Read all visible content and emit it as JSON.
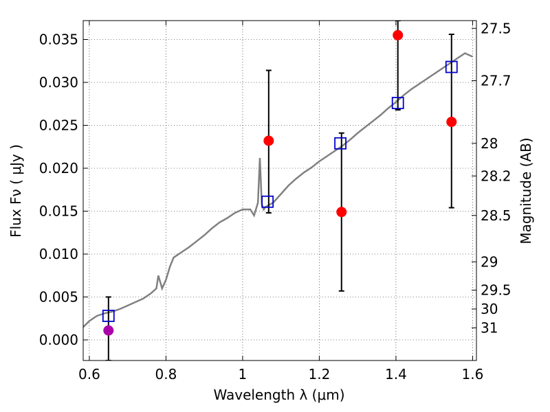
{
  "chart_data": {
    "type": "scatter",
    "xlabel": "Wavelength  λ (μm)",
    "ylabel": "Flux  Fν  ( μJy )",
    "ylabel_right": "Magnitude (AB)",
    "xlim": [
      0.584,
      1.61
    ],
    "ylim": [
      -0.0024,
      0.0372
    ],
    "x_ticks": [
      0.6,
      0.8,
      1.0,
      1.2,
      1.4,
      1.6
    ],
    "x_tick_labels": [
      "0.6",
      "0.8",
      "1",
      "1.2",
      "1.4",
      "1.6"
    ],
    "y_ticks": [
      0.0,
      0.005,
      0.01,
      0.015,
      0.02,
      0.025,
      0.03,
      0.035
    ],
    "y_tick_labels": [
      "0.000",
      "0.005",
      "0.010",
      "0.015",
      "0.020",
      "0.025",
      "0.030",
      "0.035"
    ],
    "right_ticks": [
      {
        "label": "27.5",
        "flux": 0.0363
      },
      {
        "label": "27.7",
        "flux": 0.0302
      },
      {
        "label": "28",
        "flux": 0.0229
      },
      {
        "label": "28.2",
        "flux": 0.0191
      },
      {
        "label": "28.5",
        "flux": 0.0145
      },
      {
        "label": "29",
        "flux": 0.0091
      },
      {
        "label": "29.5",
        "flux": 0.0058
      },
      {
        "label": "30",
        "flux": 0.0036
      },
      {
        "label": "31",
        "flux": 0.0014
      }
    ],
    "grid": true,
    "colors": {
      "spectrum": "#808080",
      "model": "#0000cc",
      "observed": "#ff0000",
      "upper": "#aa00aa",
      "error": "#000000"
    },
    "series": [
      {
        "kind": "line",
        "x": [
          0.584,
          0.6,
          0.62,
          0.64,
          0.66,
          0.68,
          0.7,
          0.72,
          0.74,
          0.76,
          0.775,
          0.78,
          0.79,
          0.8,
          0.81,
          0.82,
          0.84,
          0.86,
          0.88,
          0.9,
          0.92,
          0.94,
          0.96,
          0.98,
          1.0,
          1.02,
          1.03,
          1.04,
          1.045,
          1.05,
          1.055,
          1.06,
          1.08,
          1.1,
          1.12,
          1.14,
          1.16,
          1.18,
          1.2,
          1.22,
          1.24,
          1.26,
          1.28,
          1.3,
          1.32,
          1.34,
          1.36,
          1.38,
          1.4,
          1.42,
          1.44,
          1.46,
          1.48,
          1.5,
          1.52,
          1.54,
          1.56,
          1.58,
          1.6
        ],
        "y": [
          0.0015,
          0.0022,
          0.0028,
          0.0031,
          0.0033,
          0.0036,
          0.004,
          0.0044,
          0.0048,
          0.0054,
          0.006,
          0.0075,
          0.006,
          0.007,
          0.0085,
          0.0096,
          0.0102,
          0.0108,
          0.0115,
          0.0122,
          0.013,
          0.0137,
          0.0142,
          0.0148,
          0.0152,
          0.0152,
          0.0145,
          0.016,
          0.0212,
          0.0158,
          0.0152,
          0.0155,
          0.016,
          0.017,
          0.018,
          0.0188,
          0.0195,
          0.0201,
          0.0208,
          0.0214,
          0.022,
          0.0226,
          0.0233,
          0.0241,
          0.0248,
          0.0255,
          0.0262,
          0.027,
          0.0277,
          0.0285,
          0.0292,
          0.0298,
          0.0304,
          0.031,
          0.0316,
          0.0322,
          0.0328,
          0.0334,
          0.033
        ]
      },
      {
        "kind": "model",
        "x": [
          0.65,
          1.065,
          1.255,
          1.405,
          1.545
        ],
        "y": [
          0.0028,
          0.0161,
          0.0229,
          0.0276,
          0.0318
        ]
      },
      {
        "kind": "observed",
        "x": [
          1.068,
          1.258,
          1.405,
          1.545
        ],
        "y": [
          0.0232,
          0.0149,
          0.0355,
          0.0254
        ],
        "err_low": [
          0.0148,
          0.0057,
          0.0268,
          0.0154
        ],
        "err_high": [
          0.0314,
          0.0241,
          0.0372,
          0.0356
        ]
      },
      {
        "kind": "upper",
        "x": [
          0.65
        ],
        "y": [
          0.0011
        ],
        "err_low": [
          -0.0024
        ],
        "err_high": [
          0.005
        ]
      }
    ]
  }
}
